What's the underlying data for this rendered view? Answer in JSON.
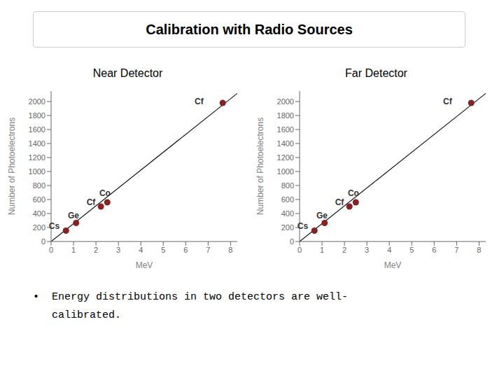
{
  "title": "Calibration with Radio Sources",
  "annotations": [
    "•  Energy distributions in two detectors are well-",
    "   calibrated."
  ],
  "chart_data": [
    {
      "type": "scatter",
      "title": "Near Detector",
      "xlabel": "MeV",
      "ylabel": "Number of Photoelectrons",
      "xlim": [
        0,
        8.3
      ],
      "ylim": [
        0,
        2150
      ],
      "xticks": [
        0,
        1,
        2,
        3,
        4,
        5,
        6,
        7,
        8
      ],
      "yticks": [
        0,
        200,
        400,
        600,
        800,
        1000,
        1200,
        1400,
        1600,
        1800,
        2000
      ],
      "grid": false,
      "series": [
        {
          "type": "scatter",
          "color": "#882222",
          "x": [
            0.662,
            1.115,
            2.22,
            2.505,
            7.65
          ],
          "values": [
            155,
            265,
            500,
            560,
            1980
          ]
        },
        {
          "type": "line",
          "color": "#111111",
          "x": [
            0,
            8.3
          ],
          "values": [
            0,
            2116.5
          ]
        }
      ],
      "annotations": [
        {
          "text": "Cs",
          "x": -0.1,
          "y": 185
        },
        {
          "text": "Ge",
          "x": 0.75,
          "y": 335
        },
        {
          "text": "Cf",
          "x": 1.58,
          "y": 525
        },
        {
          "text": "Co",
          "x": 2.15,
          "y": 650
        },
        {
          "text": "Cf",
          "x": 6.4,
          "y": 1960
        }
      ]
    },
    {
      "type": "scatter",
      "title": "Far Detector",
      "xlabel": "MeV",
      "ylabel": "Number of Photoelectrons",
      "xlim": [
        0,
        8.3
      ],
      "ylim": [
        0,
        2150
      ],
      "xticks": [
        0,
        1,
        2,
        3,
        4,
        5,
        6,
        7,
        8
      ],
      "yticks": [
        0,
        200,
        400,
        600,
        800,
        1000,
        1200,
        1400,
        1600,
        1800,
        2000
      ],
      "grid": false,
      "series": [
        {
          "type": "scatter",
          "color": "#882222",
          "x": [
            0.662,
            1.115,
            2.22,
            2.505,
            7.65
          ],
          "values": [
            155,
            265,
            500,
            560,
            1980
          ]
        },
        {
          "type": "line",
          "color": "#111111",
          "x": [
            0,
            8.3
          ],
          "values": [
            0,
            2116.5
          ]
        }
      ],
      "annotations": [
        {
          "text": "Cs",
          "x": -0.1,
          "y": 185
        },
        {
          "text": "Ge",
          "x": 0.75,
          "y": 335
        },
        {
          "text": "Cf",
          "x": 1.58,
          "y": 525
        },
        {
          "text": "Co",
          "x": 2.15,
          "y": 650
        },
        {
          "text": "Cf",
          "x": 6.4,
          "y": 1960
        }
      ]
    }
  ]
}
